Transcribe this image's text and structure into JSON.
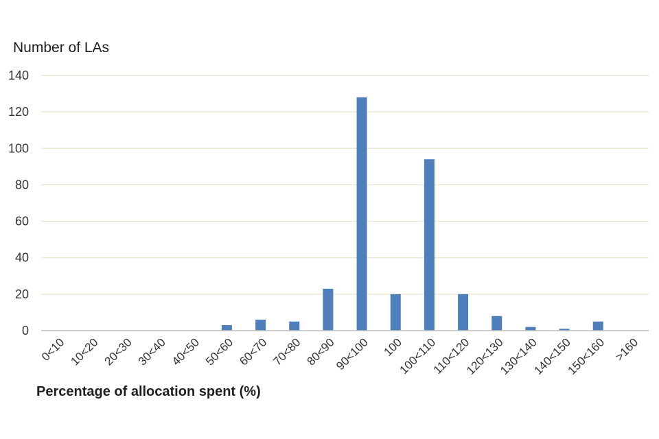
{
  "chart_data": {
    "type": "bar",
    "title": "",
    "ylabel": "Number of LAs",
    "xlabel": "Percentage of allocation spent (%)",
    "categories": [
      "0<10",
      "10<20",
      "20<30",
      "30<40",
      "40<50",
      "50<60",
      "60<70",
      "70<80",
      "80<90",
      "90<100",
      "100",
      "100<110",
      "110<120",
      "120<130",
      "130<140",
      "140<150",
      "150<160",
      ">160"
    ],
    "values": [
      0,
      0,
      0,
      0,
      0,
      3,
      6,
      5,
      23,
      128,
      20,
      94,
      20,
      8,
      2,
      1,
      5,
      0
    ],
    "ylim": [
      0,
      140
    ],
    "yticks": [
      0,
      20,
      40,
      60,
      80,
      100,
      120,
      140
    ],
    "grid": true,
    "bar_color": "#4e7fba",
    "grid_color": "#ebe8d6",
    "axis_color": "#bfbfbf"
  }
}
